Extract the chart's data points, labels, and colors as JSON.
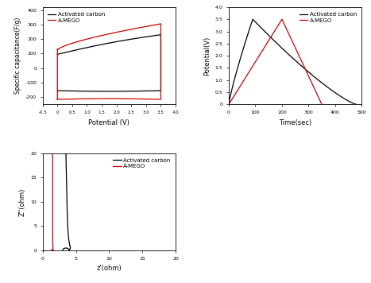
{
  "cv_xlim": [
    -0.5,
    4.0
  ],
  "cv_ylim": [
    -250,
    420
  ],
  "cv_xlabel": "Potential (V)",
  "cv_ylabel": "Specific capacitance(F/g)",
  "gcd_xlim": [
    0,
    500
  ],
  "gcd_ylim": [
    0,
    4.0
  ],
  "gcd_xlabel": "Time(sec)",
  "gcd_ylabel": "Potential(V)",
  "eis_xlim": [
    0,
    20
  ],
  "eis_ylim": [
    0,
    20
  ],
  "eis_xlabel": "z'(ohm)",
  "eis_ylabel": "Z''(ohm)",
  "line_color_ac": "#000000",
  "line_color_amego": "#cc0000",
  "legend_ac": "Activated carbon",
  "legend_amego": "A-MEGO",
  "background_color": "#ffffff"
}
